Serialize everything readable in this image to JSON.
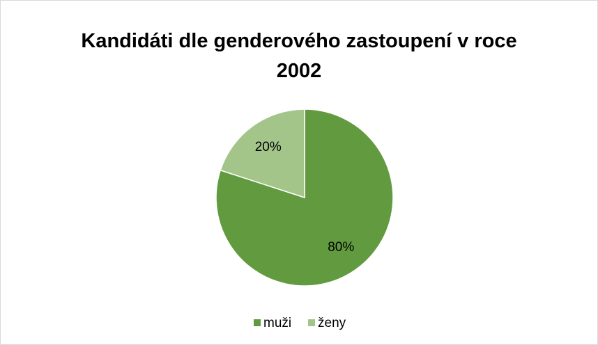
{
  "chart_data": {
    "type": "pie",
    "title": "Kandidáti dle genderového zastoupení v roce 2002",
    "categories": [
      "muži",
      "ženy"
    ],
    "values": [
      80,
      20
    ],
    "value_labels": [
      "80%",
      "20%"
    ],
    "colors": [
      "#629b3f",
      "#a3c58a"
    ],
    "legend": "bottom"
  }
}
